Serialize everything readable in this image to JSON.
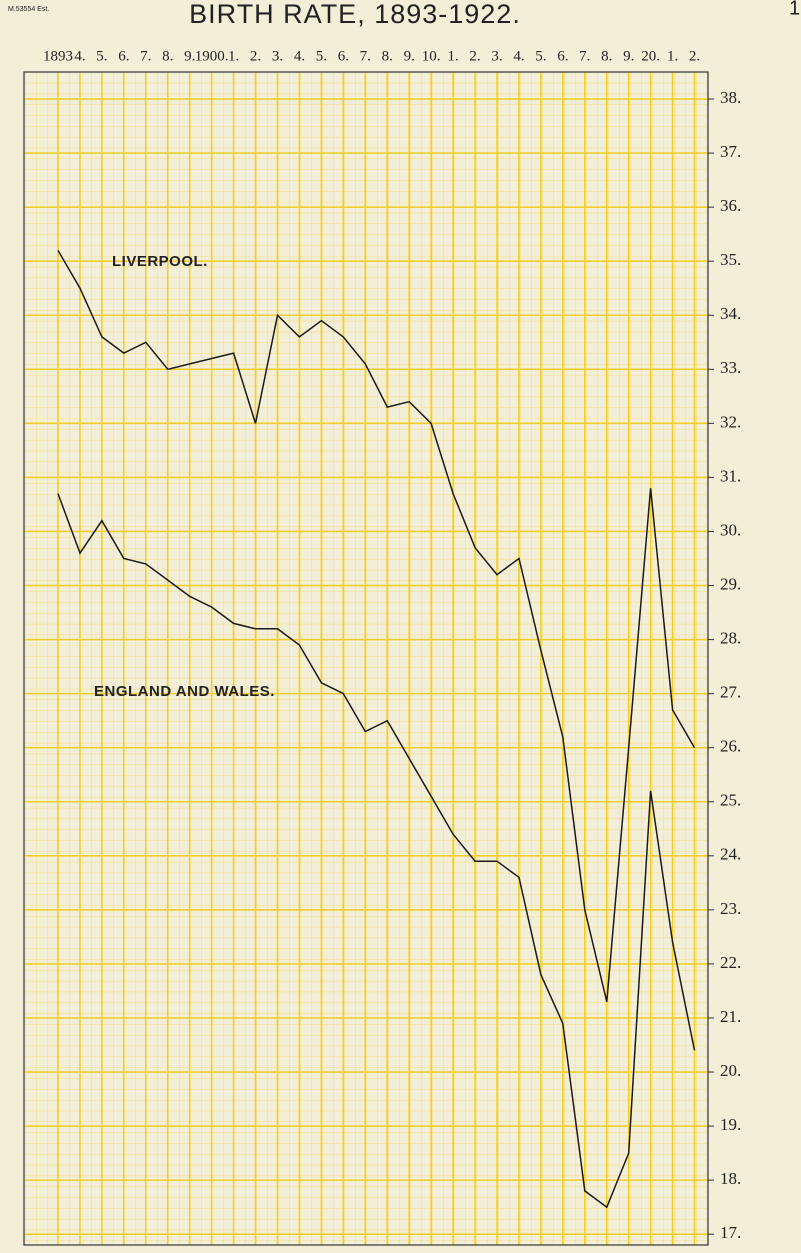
{
  "stamp": "M.53554 Est.",
  "page_number": "1",
  "chart_data": {
    "type": "line",
    "title": "BIRTH RATE, 1893-1922.",
    "categories": [
      "1893",
      "4.",
      "5.",
      "6.",
      "7.",
      "8.",
      "9.",
      "1900.",
      "1.",
      "2.",
      "3.",
      "4.",
      "5.",
      "6.",
      "7.",
      "8.",
      "9.",
      "10.",
      "1.",
      "2.",
      "3.",
      "4.",
      "5.",
      "6.",
      "7.",
      "8.",
      "9.",
      "20.",
      "1.",
      "2."
    ],
    "series": [
      {
        "name": "LIVERPOOL.",
        "color": "#1a1a1a",
        "values": [
          35.2,
          34.5,
          33.6,
          33.3,
          33.5,
          33.0,
          33.1,
          33.2,
          33.3,
          32.0,
          34.0,
          33.6,
          33.9,
          33.6,
          33.1,
          32.3,
          32.4,
          32.0,
          30.7,
          29.7,
          29.2,
          29.5,
          27.8,
          26.2,
          23.0,
          21.3,
          26.0,
          30.8,
          26.7,
          26.0
        ]
      },
      {
        "name": "ENGLAND AND WALES.",
        "color": "#1a1a1a",
        "values": [
          30.7,
          29.6,
          30.2,
          29.5,
          29.4,
          29.1,
          28.8,
          28.6,
          28.3,
          28.2,
          28.2,
          27.9,
          27.2,
          27.0,
          26.3,
          26.5,
          25.8,
          25.1,
          24.4,
          23.9,
          23.9,
          23.6,
          21.8,
          20.9,
          17.8,
          17.5,
          18.5,
          25.2,
          22.4,
          20.4
        ]
      }
    ],
    "ylim": [
      16.8,
      38.5
    ],
    "yticks": [
      {
        "value": 17,
        "label": "17."
      },
      {
        "value": 18,
        "label": "18."
      },
      {
        "value": 19,
        "label": "19."
      },
      {
        "value": 20,
        "label": "20."
      },
      {
        "value": 21,
        "label": "21."
      },
      {
        "value": 22,
        "label": "22."
      },
      {
        "value": 23,
        "label": "23."
      },
      {
        "value": 24,
        "label": "24."
      },
      {
        "value": 25,
        "label": "25."
      },
      {
        "value": 26,
        "label": "26."
      },
      {
        "value": 27,
        "label": "27."
      },
      {
        "value": 28,
        "label": "28."
      },
      {
        "value": 29,
        "label": "29."
      },
      {
        "value": 30,
        "label": "30."
      },
      {
        "value": 31,
        "label": "31."
      },
      {
        "value": 32,
        "label": "32."
      },
      {
        "value": 33,
        "label": "33."
      },
      {
        "value": 34,
        "label": "34."
      },
      {
        "value": 35,
        "label": "35."
      },
      {
        "value": 36,
        "label": "36."
      },
      {
        "value": 37,
        "label": "37."
      },
      {
        "value": 38,
        "label": "38."
      }
    ],
    "grid": true
  }
}
